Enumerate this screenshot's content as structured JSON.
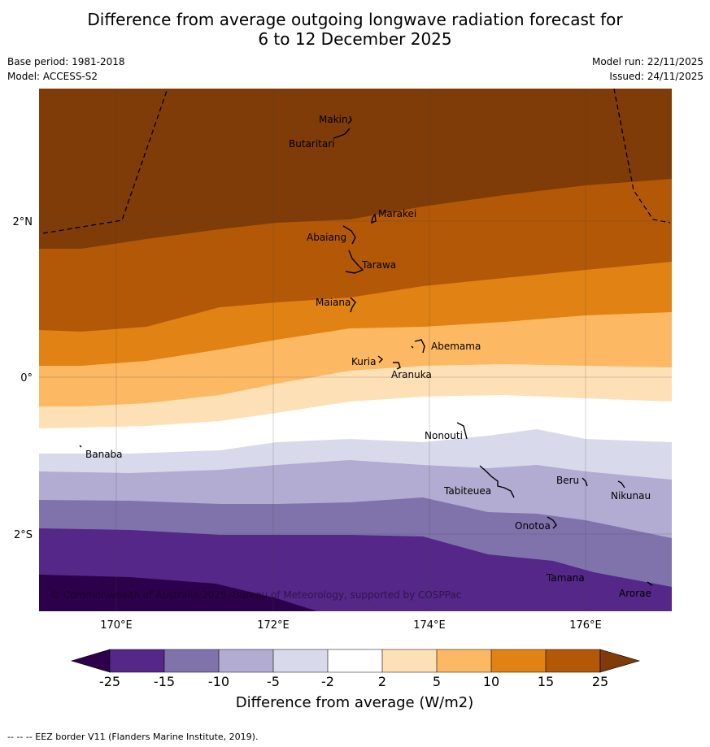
{
  "title_line1": "Difference from average outgoing longwave radiation forecast for",
  "title_line2": "6 to 12 December 2025",
  "base_period": "Base period: 1981-2018",
  "model": "Model: ACCESS-S2",
  "model_run": "Model run: 22/11/2025",
  "issued": "Issued: 24/11/2025",
  "copyright": "© Commonwealth of Australia 2025, Bureau of Meteorology, supported by COSPPac",
  "footer": "-- -- -- EEZ border V11 (Flanders Marine Institute, 2019).",
  "lon_labels": [
    "170°E",
    "172°E",
    "174°E",
    "176°E"
  ],
  "lat_labels": [
    "2°N",
    "0°",
    "2°S"
  ],
  "colorbar": {
    "title": "Difference from average (W/m2)",
    "ticks": [
      "-25",
      "-15",
      "-10",
      "-5",
      "-2",
      "2",
      "5",
      "10",
      "15",
      "25"
    ],
    "colors": {
      "extend_low": "#2d004b",
      "b1": "#542788",
      "b2": "#8073ac",
      "b3": "#b2abd2",
      "b4": "#d8daeb",
      "b5": "#ffffff",
      "b6": "#fee0b6",
      "b7": "#fdb863",
      "b8": "#e08214",
      "b9": "#b35806",
      "extend_high": "#7f3b08"
    }
  },
  "islands": [
    "Makin",
    "Butaritari",
    "Marakei",
    "Abaiang",
    "Tarawa",
    "Maiana",
    "Abemama",
    "Kuria",
    "Aranuka",
    "Nonouti",
    "Banaba",
    "Tabiteuea",
    "Beru",
    "Nikunau",
    "Onotoa",
    "Tamana",
    "Arorae"
  ]
}
